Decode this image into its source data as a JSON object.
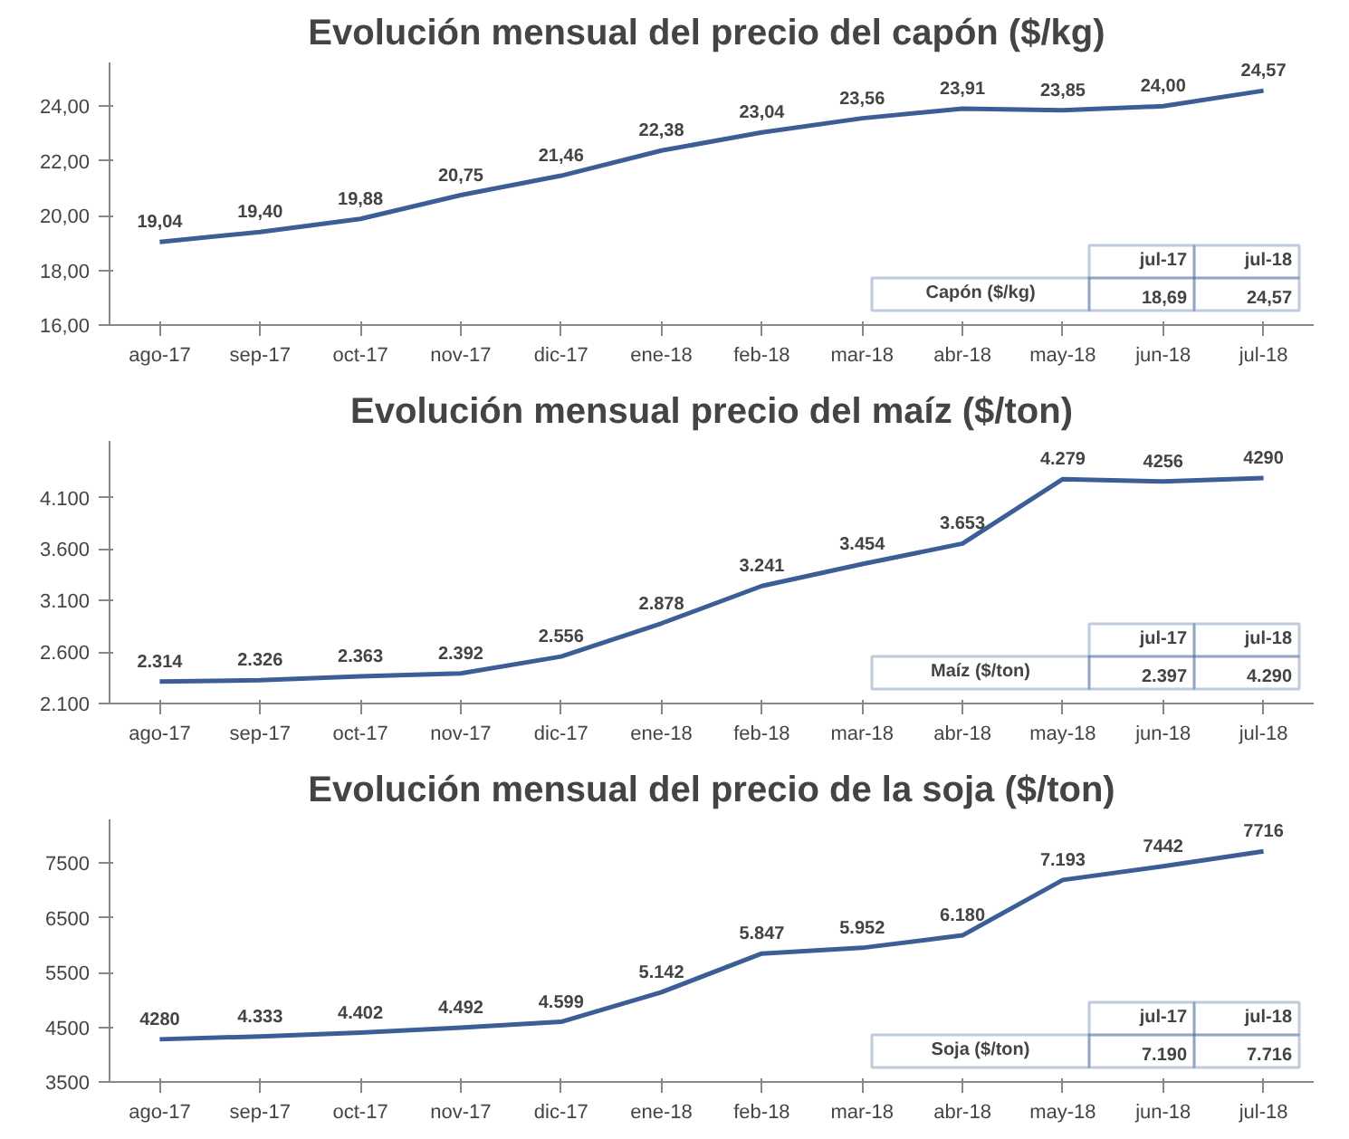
{
  "chart_data": [
    {
      "type": "line",
      "title": "Evolución mensual  del precio del capón ($/kg)",
      "categories": [
        "ago-17",
        "sep-17",
        "oct-17",
        "nov-17",
        "dic-17",
        "ene-18",
        "feb-18",
        "mar-18",
        "abr-18",
        "may-18",
        "jun-18",
        "jul-18"
      ],
      "series": [
        {
          "color": "#3b5e96",
          "values": [
            19.04,
            19.4,
            19.88,
            20.75,
            21.46,
            22.38,
            23.04,
            23.56,
            23.91,
            23.85,
            24.0,
            24.57
          ],
          "value_labels": [
            "19,04",
            "19,40",
            "19,88",
            "20,75",
            "21,46",
            "22,38",
            "23,04",
            "23,56",
            "23,91",
            "23,85",
            "24,00",
            "24,57"
          ]
        }
      ],
      "ylim": [
        16,
        25.6
      ],
      "yticks": [
        {
          "value": 16,
          "label": "16,00"
        },
        {
          "value": 18,
          "label": "18,00"
        },
        {
          "value": 20,
          "label": "20,00"
        },
        {
          "value": 22,
          "label": "22,00"
        },
        {
          "value": 24,
          "label": "24,00"
        }
      ],
      "grid": false,
      "marker": "none",
      "line_style": "solid",
      "annotations": [
        "jul-17",
        "jul-18",
        "Capón ($/kg)",
        "18,69",
        "24,57"
      ]
    },
    {
      "type": "line",
      "title": "Evolución mensual precio del maíz ($/ton)",
      "categories": [
        "ago-17",
        "sep-17",
        "oct-17",
        "nov-17",
        "dic-17",
        "ene-18",
        "feb-18",
        "mar-18",
        "abr-18",
        "may-18",
        "jun-18",
        "jul-18"
      ],
      "series": [
        {
          "color": "#3b5e96",
          "values": [
            2314,
            2326,
            2363,
            2392,
            2556,
            2878,
            3241,
            3454,
            3653,
            4279,
            4256,
            4290
          ],
          "value_labels": [
            "2.314",
            "2.326",
            "2.363",
            "2.392",
            "2.556",
            "2.878",
            "3.241",
            "3.454",
            "3.653",
            "4.279",
            "4256",
            "4290"
          ]
        }
      ],
      "ylim": [
        2100,
        4650
      ],
      "yticks": [
        {
          "value": 2100,
          "label": "2.100"
        },
        {
          "value": 2600,
          "label": "2.600"
        },
        {
          "value": 3100,
          "label": "3.100"
        },
        {
          "value": 3600,
          "label": "3.600"
        },
        {
          "value": 4100,
          "label": "4.100"
        }
      ],
      "grid": false,
      "marker": "none",
      "line_style": "solid",
      "annotations": [
        "jul-17",
        "jul-18",
        "Maíz ($/ton)",
        "2.397",
        "4.290"
      ]
    },
    {
      "type": "line",
      "title": "Evolución mensual del precio de la soja ($/ton)",
      "categories": [
        "ago-17",
        "sep-17",
        "oct-17",
        "nov-17",
        "dic-17",
        "ene-18",
        "feb-18",
        "mar-18",
        "abr-18",
        "may-18",
        "jun-18",
        "jul-18"
      ],
      "series": [
        {
          "color": "#3b5e96",
          "values": [
            4280,
            4333,
            4402,
            4492,
            4599,
            5142,
            5847,
            5952,
            6180,
            7193,
            7442,
            7716
          ],
          "value_labels": [
            "4280",
            "4.333",
            "4.402",
            "4.492",
            "4.599",
            "5.142",
            "5.847",
            "5.952",
            "6.180",
            "7.193",
            "7442",
            "7716"
          ]
        }
      ],
      "ylim": [
        3500,
        8300
      ],
      "yticks": [
        3500,
        4500,
        5500,
        6500,
        7500
      ],
      "grid": false,
      "marker": "none",
      "line_style": "solid",
      "annotations": [
        "jul-17",
        "jul-18",
        "Soja ($/ton)",
        "7.190",
        "7.716"
      ]
    }
  ]
}
